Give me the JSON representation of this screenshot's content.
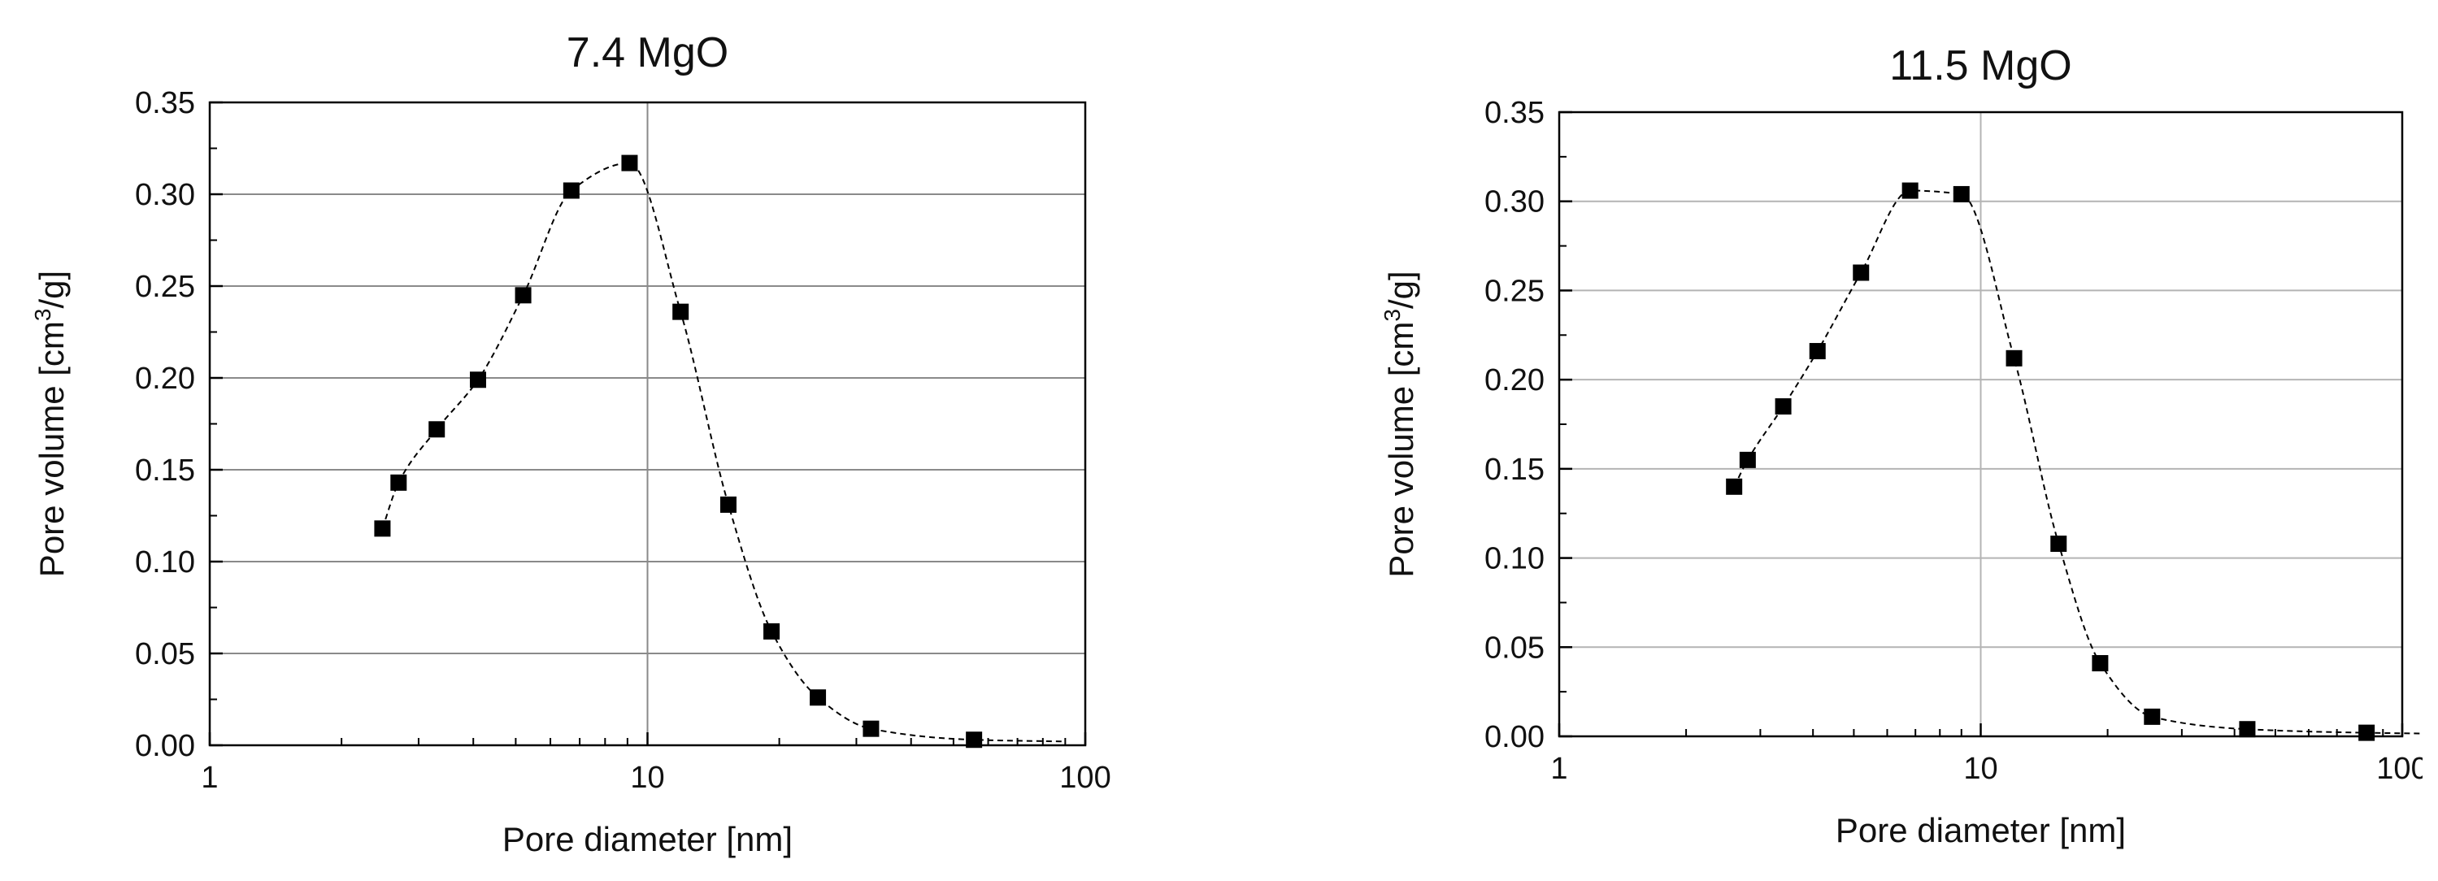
{
  "chart_data": [
    {
      "type": "scatter",
      "title": "7.4 MgO",
      "xlabel": "Pore diameter [nm]",
      "ylabel_main": "Pore volume [cm",
      "ylabel_sup": "3",
      "ylabel_end": "/g]",
      "x_scale": "log",
      "xlim": [
        1,
        100
      ],
      "ylim": [
        0,
        0.35
      ],
      "x_ticks": [
        1,
        10,
        100
      ],
      "x_tick_labels": [
        "1",
        "10",
        "100"
      ],
      "y_ticks": [
        0,
        0.05,
        0.1,
        0.15,
        0.2,
        0.25,
        0.3,
        0.35
      ],
      "y_tick_labels": [
        "0.00",
        "0.05",
        "0.10",
        "0.15",
        "0.20",
        "0.25",
        "0.30",
        "0.35"
      ],
      "grid": "horizontal and vertical major",
      "fit_line": "dashed",
      "series": [
        {
          "marker": "square",
          "color": "#000000",
          "x": [
            2.48,
            2.7,
            3.3,
            4.1,
            5.2,
            6.7,
            9.1,
            11.9,
            15.3,
            19.2,
            24.5,
            32.4,
            55.7
          ],
          "y": [
            0.118,
            0.143,
            0.172,
            0.199,
            0.245,
            0.302,
            0.317,
            0.236,
            0.131,
            0.062,
            0.026,
            0.009,
            0.003
          ]
        }
      ]
    },
    {
      "type": "scatter",
      "title": "11.5 MgO",
      "xlabel": "Pore diameter [nm]",
      "ylabel_main": "Pore volume [cm",
      "ylabel_sup": "3",
      "ylabel_end": "/g]",
      "x_scale": "log",
      "xlim": [
        1,
        100
      ],
      "ylim": [
        0,
        0.35
      ],
      "x_ticks": [
        1,
        10,
        100
      ],
      "x_tick_labels": [
        "1",
        "10",
        "100"
      ],
      "y_ticks": [
        0,
        0.05,
        0.1,
        0.15,
        0.2,
        0.25,
        0.3,
        0.35
      ],
      "y_tick_labels": [
        "0.00",
        "0.05",
        "0.10",
        "0.15",
        "0.20",
        "0.25",
        "0.30",
        "0.35"
      ],
      "grid": "horizontal and vertical major",
      "fit_line": "dashed",
      "series": [
        {
          "marker": "square",
          "color": "#000000",
          "x": [
            2.6,
            2.8,
            3.4,
            4.1,
            5.2,
            6.8,
            9.0,
            12.0,
            15.3,
            19.2,
            25.5,
            42.9,
            82.3
          ],
          "y": [
            0.14,
            0.155,
            0.185,
            0.216,
            0.26,
            0.306,
            0.304,
            0.212,
            0.108,
            0.041,
            0.011,
            0.004,
            0.002
          ]
        }
      ]
    }
  ]
}
